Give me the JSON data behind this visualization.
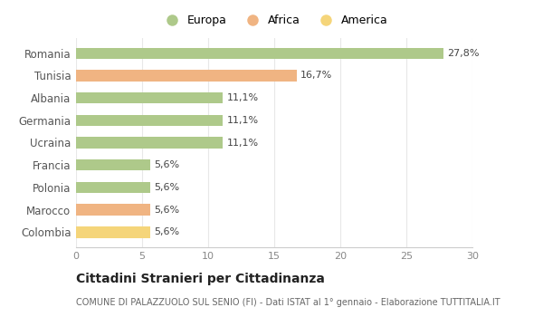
{
  "categories": [
    "Romania",
    "Tunisia",
    "Albania",
    "Germania",
    "Ucraina",
    "Francia",
    "Polonia",
    "Marocco",
    "Colombia"
  ],
  "values": [
    27.8,
    16.7,
    11.1,
    11.1,
    11.1,
    5.6,
    5.6,
    5.6,
    5.6
  ],
  "labels": [
    "27,8%",
    "16,7%",
    "11,1%",
    "11,1%",
    "11,1%",
    "5,6%",
    "5,6%",
    "5,6%",
    "5,6%"
  ],
  "colors": [
    "#aec98a",
    "#f0b482",
    "#aec98a",
    "#aec98a",
    "#aec98a",
    "#aec98a",
    "#aec98a",
    "#f0b482",
    "#f5d57a"
  ],
  "legend_labels": [
    "Europa",
    "Africa",
    "America"
  ],
  "legend_colors": [
    "#aec98a",
    "#f0b482",
    "#f5d57a"
  ],
  "title": "Cittadini Stranieri per Cittadinanza",
  "subtitle": "COMUNE DI PALAZZUOLO SUL SENIO (FI) - Dati ISTAT al 1° gennaio - Elaborazione TUTTITALIA.IT",
  "xlim": [
    0,
    30
  ],
  "xticks": [
    0,
    5,
    10,
    15,
    20,
    25,
    30
  ],
  "background_color": "#ffffff",
  "grid_color": "#e8e8e8",
  "bar_height": 0.5,
  "label_fontsize": 8,
  "ytick_fontsize": 8.5,
  "xtick_fontsize": 8,
  "title_fontsize": 10,
  "subtitle_fontsize": 7
}
